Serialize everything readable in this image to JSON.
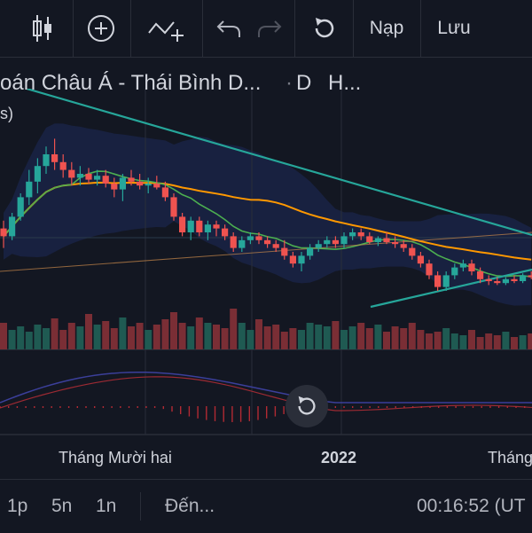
{
  "toolbar": {
    "buttons": [
      {
        "icon": "candlestick-icon"
      },
      {
        "icon": "plus-circle-icon"
      },
      {
        "icon": "indicators-icon"
      },
      {
        "icon": "undo-icon"
      },
      {
        "icon": "redo-icon"
      },
      {
        "icon": "reset-icon"
      }
    ],
    "load_label": "Nạp",
    "save_label": "Lưu"
  },
  "header": {
    "symbol_title": "oán Châu Á - Thái Bình D...",
    "interval": "D",
    "extra": "H...",
    "paren": "s)"
  },
  "colors": {
    "background": "#131722",
    "up": "#26a69a",
    "down": "#ef5350",
    "ma_short": "#4caf50",
    "ma_long": "#ff9800",
    "trendline": "#26a69a",
    "band": "#1e2a5a"
  },
  "chart_data": {
    "type": "candlestick",
    "x_tick_labels": [
      "Tháng Mười hai",
      "2022",
      "Tháng"
    ],
    "candles": [
      {
        "o": 62,
        "h": 66,
        "l": 52,
        "c": 58
      },
      {
        "o": 58,
        "h": 70,
        "l": 56,
        "c": 68
      },
      {
        "o": 68,
        "h": 80,
        "l": 66,
        "c": 78
      },
      {
        "o": 78,
        "h": 92,
        "l": 74,
        "c": 86
      },
      {
        "o": 86,
        "h": 98,
        "l": 80,
        "c": 94
      },
      {
        "o": 94,
        "h": 104,
        "l": 90,
        "c": 100
      },
      {
        "o": 100,
        "h": 108,
        "l": 92,
        "c": 96
      },
      {
        "o": 96,
        "h": 100,
        "l": 88,
        "c": 92
      },
      {
        "o": 92,
        "h": 96,
        "l": 84,
        "c": 88
      },
      {
        "o": 88,
        "h": 94,
        "l": 84,
        "c": 90
      },
      {
        "o": 90,
        "h": 93,
        "l": 85,
        "c": 87
      },
      {
        "o": 87,
        "h": 92,
        "l": 84,
        "c": 89
      },
      {
        "o": 89,
        "h": 92,
        "l": 83,
        "c": 85
      },
      {
        "o": 85,
        "h": 88,
        "l": 78,
        "c": 82
      },
      {
        "o": 82,
        "h": 90,
        "l": 76,
        "c": 88
      },
      {
        "o": 88,
        "h": 92,
        "l": 84,
        "c": 86
      },
      {
        "o": 86,
        "h": 90,
        "l": 82,
        "c": 84
      },
      {
        "o": 84,
        "h": 88,
        "l": 80,
        "c": 85
      },
      {
        "o": 85,
        "h": 89,
        "l": 82,
        "c": 83
      },
      {
        "o": 83,
        "h": 86,
        "l": 76,
        "c": 78
      },
      {
        "o": 78,
        "h": 80,
        "l": 66,
        "c": 68
      },
      {
        "o": 68,
        "h": 70,
        "l": 58,
        "c": 60
      },
      {
        "o": 60,
        "h": 68,
        "l": 56,
        "c": 66
      },
      {
        "o": 66,
        "h": 68,
        "l": 58,
        "c": 60
      },
      {
        "o": 60,
        "h": 66,
        "l": 56,
        "c": 64
      },
      {
        "o": 64,
        "h": 66,
        "l": 58,
        "c": 62
      },
      {
        "o": 62,
        "h": 64,
        "l": 56,
        "c": 58
      },
      {
        "o": 58,
        "h": 60,
        "l": 50,
        "c": 52
      },
      {
        "o": 52,
        "h": 58,
        "l": 50,
        "c": 56
      },
      {
        "o": 56,
        "h": 60,
        "l": 54,
        "c": 58
      },
      {
        "o": 58,
        "h": 60,
        "l": 54,
        "c": 56
      },
      {
        "o": 56,
        "h": 58,
        "l": 52,
        "c": 54
      },
      {
        "o": 54,
        "h": 56,
        "l": 50,
        "c": 52
      },
      {
        "o": 52,
        "h": 56,
        "l": 46,
        "c": 48
      },
      {
        "o": 48,
        "h": 50,
        "l": 42,
        "c": 44
      },
      {
        "o": 44,
        "h": 50,
        "l": 40,
        "c": 48
      },
      {
        "o": 48,
        "h": 54,
        "l": 46,
        "c": 52
      },
      {
        "o": 52,
        "h": 56,
        "l": 50,
        "c": 54
      },
      {
        "o": 54,
        "h": 58,
        "l": 52,
        "c": 56
      },
      {
        "o": 56,
        "h": 58,
        "l": 52,
        "c": 54
      },
      {
        "o": 54,
        "h": 60,
        "l": 52,
        "c": 58
      },
      {
        "o": 58,
        "h": 62,
        "l": 56,
        "c": 60
      },
      {
        "o": 60,
        "h": 62,
        "l": 56,
        "c": 58
      },
      {
        "o": 58,
        "h": 60,
        "l": 54,
        "c": 55
      },
      {
        "o": 55,
        "h": 58,
        "l": 53,
        "c": 57
      },
      {
        "o": 57,
        "h": 60,
        "l": 54,
        "c": 55
      },
      {
        "o": 55,
        "h": 58,
        "l": 52,
        "c": 54
      },
      {
        "o": 54,
        "h": 56,
        "l": 50,
        "c": 52
      },
      {
        "o": 52,
        "h": 54,
        "l": 46,
        "c": 48
      },
      {
        "o": 48,
        "h": 50,
        "l": 42,
        "c": 44
      },
      {
        "o": 44,
        "h": 46,
        "l": 36,
        "c": 38
      },
      {
        "o": 38,
        "h": 40,
        "l": 30,
        "c": 32
      },
      {
        "o": 32,
        "h": 40,
        "l": 30,
        "c": 38
      },
      {
        "o": 38,
        "h": 44,
        "l": 36,
        "c": 42
      },
      {
        "o": 42,
        "h": 46,
        "l": 40,
        "c": 44
      },
      {
        "o": 44,
        "h": 46,
        "l": 38,
        "c": 40
      },
      {
        "o": 40,
        "h": 42,
        "l": 34,
        "c": 36
      },
      {
        "o": 36,
        "h": 38,
        "l": 33,
        "c": 35
      },
      {
        "o": 35,
        "h": 37,
        "l": 33,
        "c": 34
      },
      {
        "o": 34,
        "h": 37,
        "l": 33,
        "c": 36
      },
      {
        "o": 36,
        "h": 38,
        "l": 34,
        "c": 35
      },
      {
        "o": 35,
        "h": 39,
        "l": 34,
        "c": 38
      },
      {
        "o": 38,
        "h": 40,
        "l": 36,
        "c": 37
      }
    ],
    "volume": [
      30,
      22,
      26,
      20,
      28,
      24,
      35,
      22,
      30,
      26,
      40,
      28,
      32,
      24,
      36,
      26,
      30,
      22,
      28,
      34,
      42,
      30,
      26,
      36,
      30,
      28,
      24,
      46,
      30,
      22,
      34,
      26,
      28,
      20,
      24,
      22,
      30,
      28,
      26,
      32,
      22,
      26,
      30,
      24,
      28,
      20,
      26,
      24,
      30,
      22,
      18,
      20,
      24,
      18,
      16,
      22,
      14,
      18,
      16,
      20,
      14,
      16,
      18
    ],
    "ylim": [
      20,
      120
    ],
    "volume_max": 60
  },
  "time_scale": {
    "label_dec": "Tháng Mười hai",
    "label_2022": "2022",
    "label_month": "Tháng"
  },
  "bottom_bar": {
    "range_1d": "1p",
    "range_5d": "5n",
    "range_1m": "1n",
    "goto": "Đến...",
    "clock": "00:16:52 (UT"
  }
}
